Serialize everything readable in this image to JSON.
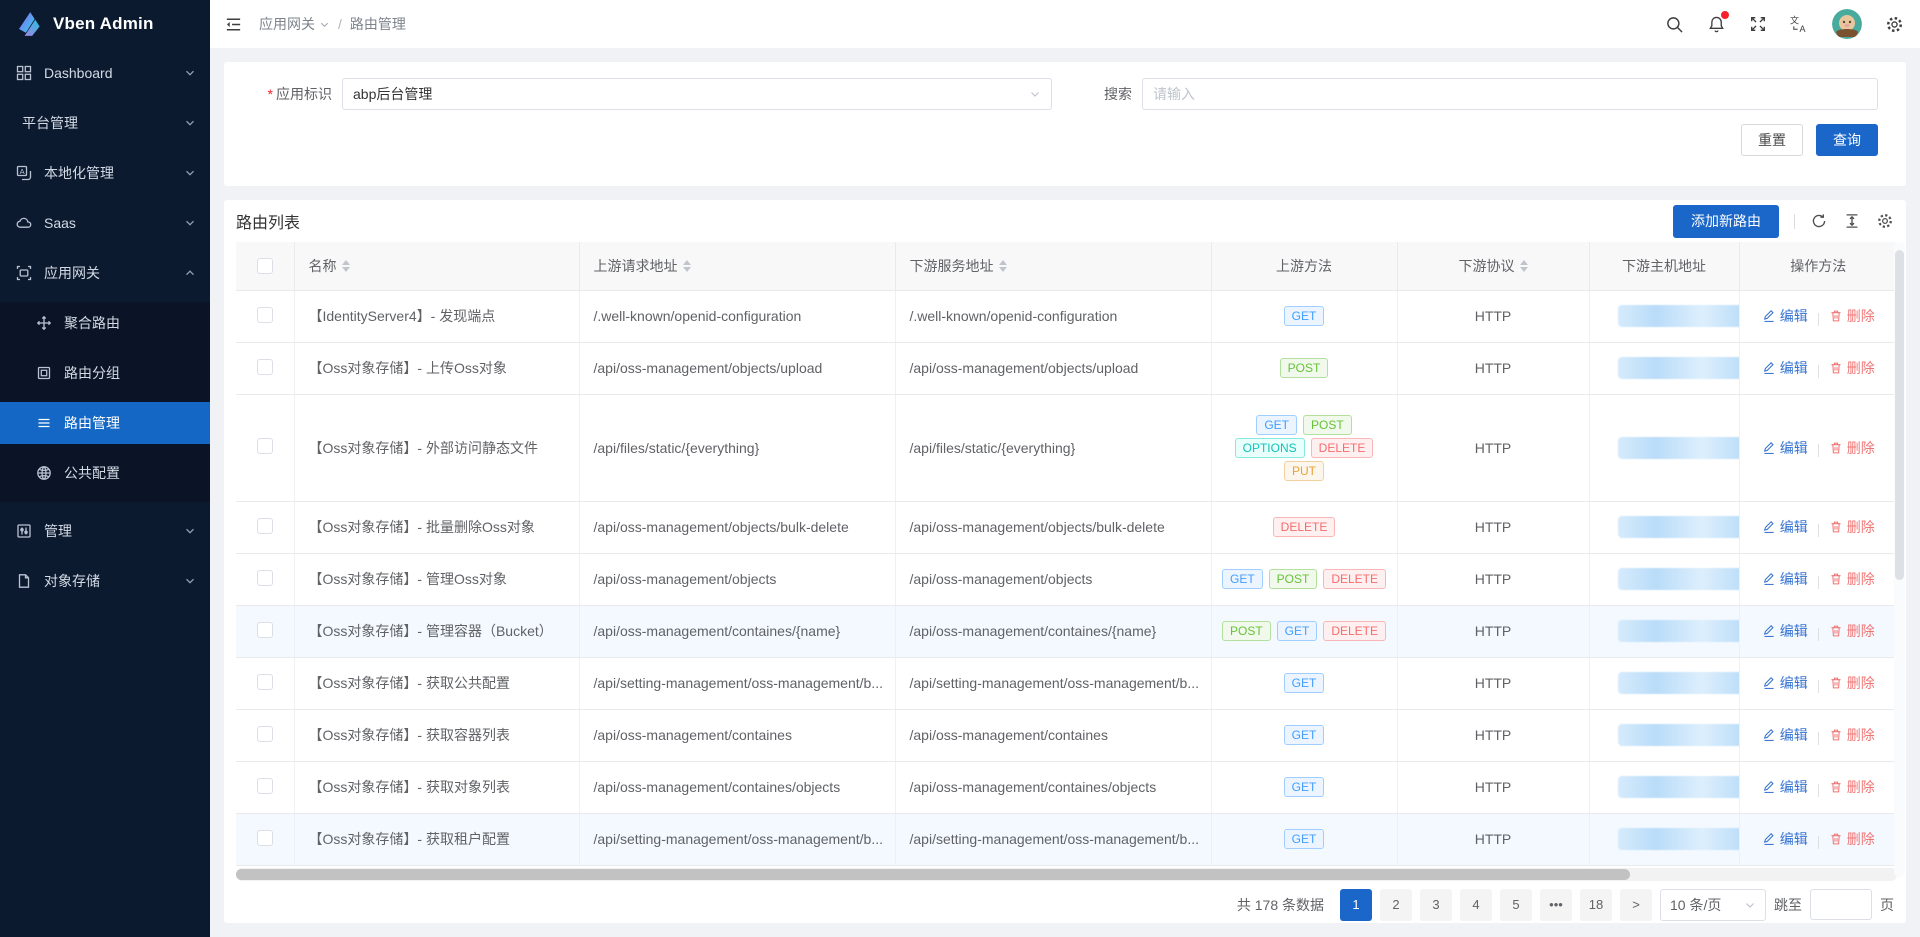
{
  "sidebar": {
    "logo_text": "Vben Admin",
    "menu_top": [
      {
        "id": "dashboard",
        "label": "Dashboard",
        "icon": "dashboard-icon",
        "chevron": "down"
      },
      {
        "id": "platform",
        "label": "平台管理",
        "icon": "",
        "chevron": "down"
      },
      {
        "id": "localization",
        "label": "本地化管理",
        "icon": "localization-icon",
        "chevron": "down"
      },
      {
        "id": "saas",
        "label": "Saas",
        "icon": "cloud-icon",
        "chevron": "down"
      },
      {
        "id": "gateway",
        "label": "应用网关",
        "icon": "gateway-icon",
        "chevron": "up"
      }
    ],
    "submenu": [
      {
        "id": "aggregate-route",
        "label": "聚合路由",
        "icon": "aggregate-route-icon",
        "active": false
      },
      {
        "id": "route-group",
        "label": "路由分组",
        "icon": "route-group-icon",
        "active": false
      },
      {
        "id": "route-manage",
        "label": "路由管理",
        "icon": "route-manage-icon",
        "active": true
      },
      {
        "id": "global-config",
        "label": "公共配置",
        "icon": "global-config-icon",
        "active": false
      }
    ],
    "menu_bottom": [
      {
        "id": "manage",
        "label": "管理",
        "icon": "manage-icon",
        "chevron": "down"
      },
      {
        "id": "object-storage",
        "label": "对象存储",
        "icon": "object-storage-icon",
        "chevron": "down"
      }
    ]
  },
  "header": {
    "breadcrumb": [
      "应用网关",
      "路由管理"
    ],
    "separator": "/"
  },
  "filter": {
    "app_label": "应用标识",
    "app_value": "abp后台管理",
    "search_label": "搜索",
    "search_placeholder": "请输入",
    "reset_label": "重置",
    "query_label": "查询"
  },
  "table": {
    "title": "路由列表",
    "add_button": "添加新路由",
    "edit_label": "编辑",
    "delete_label": "删除",
    "columns": [
      {
        "label": "",
        "sortable": false
      },
      {
        "label": "名称",
        "sortable": true
      },
      {
        "label": "上游请求地址",
        "sortable": true
      },
      {
        "label": "下游服务地址",
        "sortable": true
      },
      {
        "label": "上游方法",
        "sortable": false
      },
      {
        "label": "下游协议",
        "sortable": true
      },
      {
        "label": "下游主机地址",
        "sortable": false
      },
      {
        "label": "操作方法",
        "sortable": false
      }
    ],
    "rows": [
      {
        "name": "【IdentityServer4】- 发现端点",
        "upstream": "/.well-known/openid-configuration",
        "downstream": "/.well-known/openid-configuration",
        "methods": [
          [
            "GET"
          ]
        ],
        "protocol": "HTTP",
        "highlight": false,
        "tall": false
      },
      {
        "name": "【Oss对象存储】- 上传Oss对象",
        "upstream": "/api/oss-management/objects/upload",
        "downstream": "/api/oss-management/objects/upload",
        "methods": [
          [
            "POST"
          ]
        ],
        "protocol": "HTTP",
        "highlight": false,
        "tall": false
      },
      {
        "name": "【Oss对象存储】- 外部访问静态文件",
        "upstream": "/api/files/static/{everything}",
        "downstream": "/api/files/static/{everything}",
        "methods": [
          [
            "GET",
            "POST"
          ],
          [
            "OPTIONS",
            "DELETE"
          ],
          [
            "PUT"
          ]
        ],
        "protocol": "HTTP",
        "highlight": false,
        "tall": true
      },
      {
        "name": "【Oss对象存储】- 批量删除Oss对象",
        "upstream": "/api/oss-management/objects/bulk-delete",
        "downstream": "/api/oss-management/objects/bulk-delete",
        "methods": [
          [
            "DELETE"
          ]
        ],
        "protocol": "HTTP",
        "highlight": false,
        "tall": false
      },
      {
        "name": "【Oss对象存储】- 管理Oss对象",
        "upstream": "/api/oss-management/objects",
        "downstream": "/api/oss-management/objects",
        "methods": [
          [
            "GET",
            "POST",
            "DELETE"
          ]
        ],
        "protocol": "HTTP",
        "highlight": false,
        "tall": false
      },
      {
        "name": "【Oss对象存储】- 管理容器（Bucket）",
        "upstream": "/api/oss-management/containes/{name}",
        "downstream": "/api/oss-management/containes/{name}",
        "methods": [
          [
            "POST",
            "GET",
            "DELETE"
          ]
        ],
        "protocol": "HTTP",
        "highlight": true,
        "tall": false
      },
      {
        "name": "【Oss对象存储】- 获取公共配置",
        "upstream": "/api/setting-management/oss-management/b...",
        "downstream": "/api/setting-management/oss-management/b...",
        "methods": [
          [
            "GET"
          ]
        ],
        "protocol": "HTTP",
        "highlight": false,
        "tall": false
      },
      {
        "name": "【Oss对象存储】- 获取容器列表",
        "upstream": "/api/oss-management/containes",
        "downstream": "/api/oss-management/containes",
        "methods": [
          [
            "GET"
          ]
        ],
        "protocol": "HTTP",
        "highlight": false,
        "tall": false
      },
      {
        "name": "【Oss对象存储】- 获取对象列表",
        "upstream": "/api/oss-management/containes/objects",
        "downstream": "/api/oss-management/containes/objects",
        "methods": [
          [
            "GET"
          ]
        ],
        "protocol": "HTTP",
        "highlight": false,
        "tall": false
      },
      {
        "name": "【Oss对象存储】- 获取租户配置",
        "upstream": "/api/setting-management/oss-management/b...",
        "downstream": "/api/setting-management/oss-management/b...",
        "methods": [
          [
            "GET"
          ]
        ],
        "protocol": "HTTP",
        "highlight": true,
        "tall": false
      }
    ]
  },
  "pagination": {
    "total_text": "共 178 条数据",
    "pages": [
      "1",
      "2",
      "3",
      "4",
      "5",
      "•••",
      "18"
    ],
    "active_page": "1",
    "next_label": ">",
    "page_size": "10 条/页",
    "jump_prefix": "跳至",
    "jump_suffix": "页"
  },
  "colors": {
    "primary": "#1a66c9",
    "sidebar_bg": "#0c1a30",
    "submenu_bg": "#0a1426",
    "active_menu_bg": "#1467c5",
    "row_highlight": "#f3f9fe",
    "edit_link": "#3673d2",
    "delete_link": "#f07575",
    "notification_dot": "#f5222d",
    "method_colors": {
      "GET": {
        "text": "#409eff",
        "bg": "#ecf5ff",
        "border": "#a0cfff"
      },
      "POST": {
        "text": "#67c23a",
        "bg": "#f0f9eb",
        "border": "#b3e19d"
      },
      "OPTIONS": {
        "text": "#12c3c0",
        "bg": "#e8fffb",
        "border": "#8ae8e0"
      },
      "DELETE": {
        "text": "#f56c6c",
        "bg": "#fef0f0",
        "border": "#fab6b6"
      },
      "PUT": {
        "text": "#e6a23c",
        "bg": "#fdf6ec",
        "border": "#f3d19e"
      }
    }
  }
}
